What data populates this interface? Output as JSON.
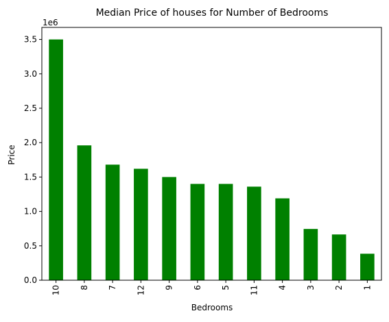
{
  "chart_data": {
    "type": "bar",
    "title": "Median Price of houses for Number of Bedrooms",
    "xlabel": "Bedrooms",
    "ylabel": "Price",
    "offset_text": "1e6",
    "categories": [
      "10",
      "8",
      "7",
      "12",
      "9",
      "6",
      "5",
      "11",
      "4",
      "3",
      "2",
      "1"
    ],
    "values": [
      3500000,
      1960000,
      1680000,
      1620000,
      1500000,
      1400000,
      1400000,
      1360000,
      1190000,
      745000,
      665000,
      385000
    ],
    "ylim": [
      0,
      3675000
    ],
    "yticks": [
      0,
      500000,
      1000000,
      1500000,
      2000000,
      2500000,
      3000000,
      3500000
    ],
    "ytick_labels": [
      "0.0",
      "0.5",
      "1.0",
      "1.5",
      "2.0",
      "2.5",
      "3.0",
      "3.5"
    ],
    "x_tick_rotation": "vertical",
    "grid": false,
    "legend": "none",
    "bar_color": "#008000"
  }
}
